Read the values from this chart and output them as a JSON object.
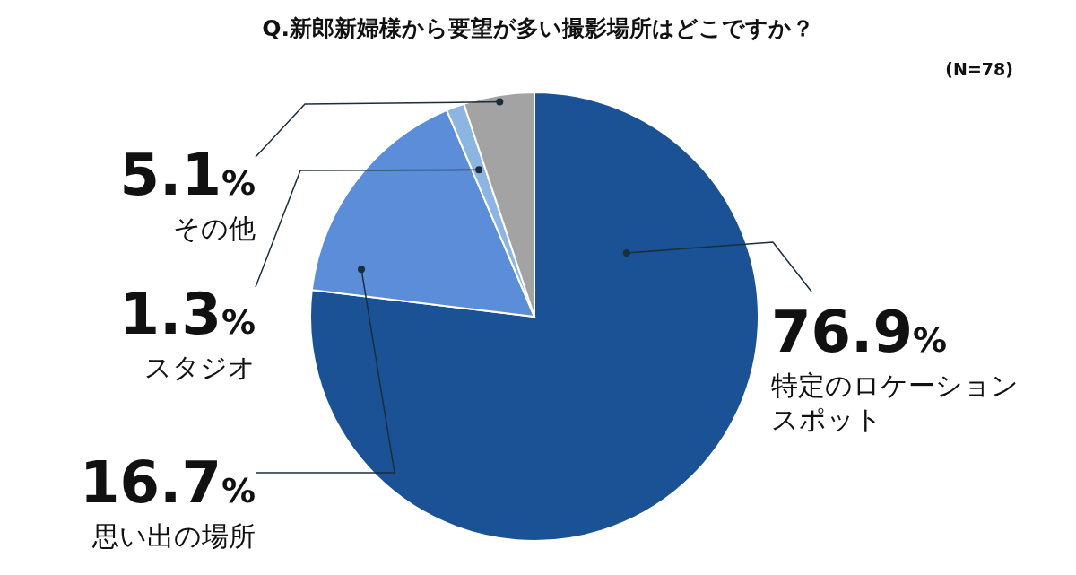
{
  "chart_data": {
    "type": "pie",
    "title": "Q.新郎新婦様から要望が多い撮影場所はどこですか？",
    "annotations": [
      "(N=78)"
    ],
    "categories": [
      "特定のロケーションスポット",
      "思い出の場所",
      "スタジオ",
      "その他"
    ],
    "values": [
      76.9,
      16.7,
      1.3,
      5.1
    ],
    "colors": [
      "#1b5296",
      "#5b8dd8",
      "#8cb5e2",
      "#a3a3a3"
    ],
    "value_labels": [
      "76.9%",
      "16.7%",
      "1.3%",
      "5.1%"
    ]
  }
}
